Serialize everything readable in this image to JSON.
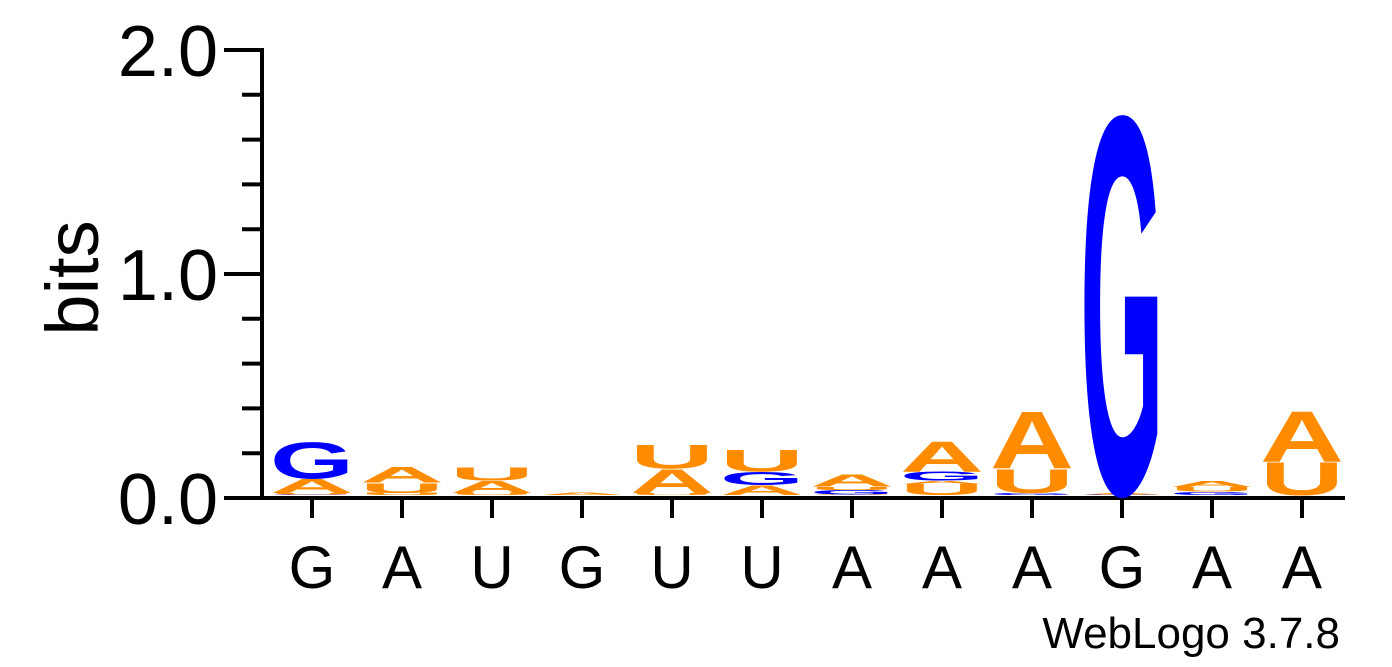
{
  "chart_data": {
    "type": "sequence-logo",
    "ylabel": "bits",
    "ylim": [
      0,
      2.0
    ],
    "yticks": [
      "0.0",
      "1.0",
      "2.0"
    ],
    "x": [
      "G",
      "A",
      "U",
      "G",
      "U",
      "U",
      "A",
      "A",
      "A",
      "G",
      "A",
      "A"
    ],
    "colors": {
      "A": "#ff8c00",
      "U": "#ff8c00",
      "G": "#0000ff",
      "C": "#0000ff"
    },
    "positions": [
      {
        "stack": [
          {
            "letter": "G",
            "bits": 0.003
          },
          {
            "letter": "U",
            "bits": 0.006
          },
          {
            "letter": "A",
            "bits": 0.065
          },
          {
            "letter": "G",
            "bits": 0.165
          }
        ]
      },
      {
        "stack": [
          {
            "letter": "U",
            "bits": 0.01
          },
          {
            "letter": "U",
            "bits": 0.045
          },
          {
            "letter": "A",
            "bits": 0.07
          }
        ]
      },
      {
        "stack": [
          {
            "letter": "U",
            "bits": 0.01
          },
          {
            "letter": "A",
            "bits": 0.055
          },
          {
            "letter": "U",
            "bits": 0.06
          }
        ]
      },
      {
        "stack": [
          {
            "letter": "A",
            "bits": 0.01
          }
        ]
      },
      {
        "stack": [
          {
            "letter": "U",
            "bits": 0.008
          },
          {
            "letter": "A",
            "bits": 0.11
          },
          {
            "letter": "U",
            "bits": 0.11
          }
        ]
      },
      {
        "stack": [
          {
            "letter": "A",
            "bits": 0.045
          },
          {
            "letter": "G",
            "bits": 0.06
          },
          {
            "letter": "U",
            "bits": 0.1
          }
        ]
      },
      {
        "stack": [
          {
            "letter": "U",
            "bits": 0.003
          },
          {
            "letter": "G",
            "bits": 0.02
          },
          {
            "letter": "U",
            "bits": 0.015
          },
          {
            "letter": "A",
            "bits": 0.055
          }
        ]
      },
      {
        "stack": [
          {
            "letter": "U",
            "bits": 0.05
          },
          {
            "letter": "A",
            "bits": 0.015
          },
          {
            "letter": "G",
            "bits": 0.04
          },
          {
            "letter": "A",
            "bits": 0.14
          }
        ]
      },
      {
        "stack": [
          {
            "letter": "G",
            "bits": 0.008
          },
          {
            "letter": "U",
            "bits": 0.11
          },
          {
            "letter": "A",
            "bits": 0.26
          }
        ]
      },
      {
        "stack": [
          {
            "letter": "G",
            "bits": 0.003
          },
          {
            "letter": "A",
            "bits": 0.006
          },
          {
            "letter": "G",
            "bits": 1.73
          }
        ]
      },
      {
        "stack": [
          {
            "letter": "G",
            "bits": 0.015
          },
          {
            "letter": "U",
            "bits": 0.02
          },
          {
            "letter": "A",
            "bits": 0.025
          }
        ]
      },
      {
        "stack": [
          {
            "letter": "U",
            "bits": 0.15
          },
          {
            "letter": "A",
            "bits": 0.23
          }
        ]
      }
    ]
  },
  "footer": {
    "credit": "WebLogo 3.7.8"
  }
}
